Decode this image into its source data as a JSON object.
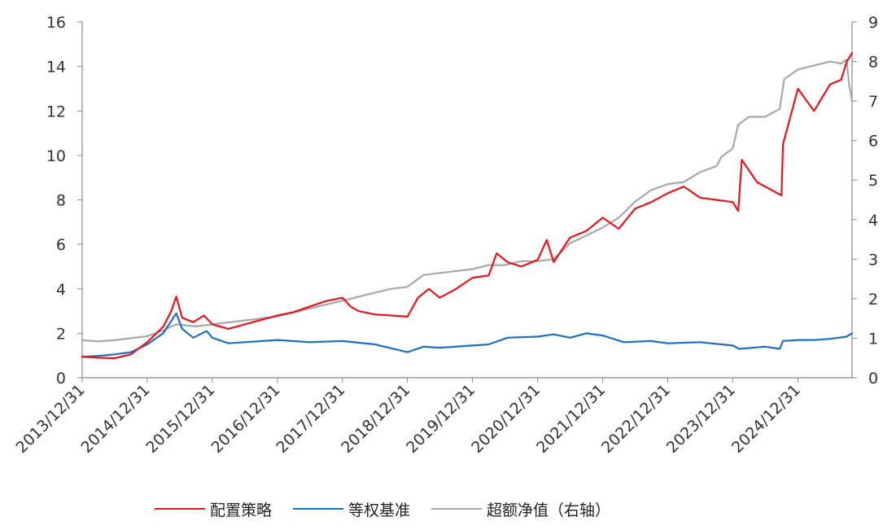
{
  "chart_data": {
    "type": "line",
    "title": "",
    "xlabel": "",
    "ylabel": "",
    "y2label": "",
    "x_ticks": [
      "2013/12/31",
      "2014/12/31",
      "2015/12/31",
      "2016/12/31",
      "2017/12/31",
      "2018/12/31",
      "2019/12/31",
      "2020/12/31",
      "2021/12/31",
      "2022/12/31",
      "2023/12/31",
      "2024/12/31"
    ],
    "ylim": [
      0,
      16
    ],
    "y_ticks": [
      0,
      2,
      4,
      6,
      8,
      10,
      12,
      14,
      16
    ],
    "y2lim": [
      0,
      9
    ],
    "y2_ticks": [
      0,
      1,
      2,
      3,
      4,
      5,
      6,
      7,
      8,
      9
    ],
    "grid": false,
    "legend_position": "bottom",
    "series": [
      {
        "name": "配置策略",
        "axis": "left",
        "color": "#e8141e",
        "x": [
          "2013-12-31",
          "2014-03-31",
          "2014-06-30",
          "2014-09-30",
          "2014-12-31",
          "2015-03-31",
          "2015-05-15",
          "2015-06-12",
          "2015-07-15",
          "2015-09-15",
          "2015-11-15",
          "2015-12-31",
          "2016-03-31",
          "2016-06-30",
          "2016-09-30",
          "2016-12-31",
          "2017-03-31",
          "2017-06-30",
          "2017-09-30",
          "2017-12-31",
          "2018-02-15",
          "2018-03-31",
          "2018-06-30",
          "2018-09-30",
          "2018-12-31",
          "2019-02-28",
          "2019-04-30",
          "2019-06-30",
          "2019-09-30",
          "2019-12-31",
          "2020-03-31",
          "2020-05-15",
          "2020-07-15",
          "2020-09-30",
          "2020-12-31",
          "2021-02-20",
          "2021-03-31",
          "2021-06-30",
          "2021-09-30",
          "2021-12-31",
          "2022-03-31",
          "2022-06-30",
          "2022-09-30",
          "2022-12-31",
          "2023-03-31",
          "2023-06-30",
          "2023-09-30",
          "2023-12-31",
          "2024-01-31",
          "2024-02-20",
          "2024-05-15",
          "2024-08-15",
          "2024-09-30",
          "2024-10-08",
          "2024-12-31",
          "2025-03-31",
          "2025-06-30",
          "2025-08-31",
          "2025-09-30",
          "2025-10-31"
        ],
        "values": [
          0.95,
          0.9,
          0.88,
          1.05,
          1.6,
          2.3,
          3.0,
          3.65,
          2.7,
          2.5,
          2.8,
          2.4,
          2.2,
          2.4,
          2.6,
          2.8,
          2.95,
          3.2,
          3.45,
          3.6,
          3.2,
          3.0,
          2.85,
          2.8,
          2.75,
          3.6,
          4.0,
          3.6,
          4.0,
          4.5,
          4.6,
          5.6,
          5.2,
          5.0,
          5.3,
          6.2,
          5.2,
          6.3,
          6.6,
          7.2,
          6.7,
          7.6,
          7.9,
          8.3,
          8.6,
          8.1,
          8.0,
          7.9,
          7.5,
          9.8,
          8.8,
          8.4,
          8.2,
          10.5,
          13.0,
          12.0,
          13.2,
          13.4,
          14.2,
          14.6
        ]
      },
      {
        "name": "等权基准",
        "axis": "left",
        "color": "#1f6fc0",
        "x": [
          "2013-12-31",
          "2014-03-31",
          "2014-06-30",
          "2014-09-30",
          "2014-12-31",
          "2015-03-31",
          "2015-06-12",
          "2015-07-15",
          "2015-09-15",
          "2015-11-30",
          "2015-12-31",
          "2016-03-31",
          "2016-06-30",
          "2016-12-31",
          "2017-06-30",
          "2017-12-31",
          "2018-06-30",
          "2018-12-31",
          "2019-03-31",
          "2019-06-30",
          "2019-12-31",
          "2020-03-31",
          "2020-07-15",
          "2020-12-31",
          "2021-03-31",
          "2021-06-30",
          "2021-09-30",
          "2021-12-31",
          "2022-04-30",
          "2022-09-30",
          "2022-12-31",
          "2023-06-30",
          "2023-12-31",
          "2024-02-05",
          "2024-06-30",
          "2024-09-20",
          "2024-10-08",
          "2024-12-31",
          "2025-03-31",
          "2025-06-30",
          "2025-09-30",
          "2025-10-31"
        ],
        "values": [
          0.95,
          0.98,
          1.05,
          1.15,
          1.5,
          2.0,
          2.9,
          2.2,
          1.8,
          2.1,
          1.8,
          1.55,
          1.6,
          1.7,
          1.6,
          1.65,
          1.5,
          1.15,
          1.4,
          1.35,
          1.45,
          1.5,
          1.8,
          1.85,
          1.95,
          1.8,
          2.0,
          1.9,
          1.6,
          1.65,
          1.55,
          1.6,
          1.45,
          1.3,
          1.4,
          1.3,
          1.65,
          1.7,
          1.7,
          1.75,
          1.85,
          2.0
        ]
      },
      {
        "name": "超额净值（右轴）",
        "axis": "right",
        "color": "#a8a8a8",
        "x": [
          "2013-12-31",
          "2014-03-31",
          "2014-06-30",
          "2014-09-30",
          "2014-12-31",
          "2015-03-31",
          "2015-06-12",
          "2015-09-30",
          "2015-12-31",
          "2016-06-30",
          "2016-12-31",
          "2017-06-30",
          "2017-12-31",
          "2018-03-31",
          "2018-06-30",
          "2018-09-30",
          "2018-12-31",
          "2019-03-31",
          "2019-06-30",
          "2019-12-31",
          "2020-03-31",
          "2020-06-30",
          "2020-09-30",
          "2020-12-31",
          "2021-03-31",
          "2021-06-30",
          "2021-09-30",
          "2021-12-31",
          "2022-03-31",
          "2022-06-30",
          "2022-09-30",
          "2022-12-31",
          "2023-03-31",
          "2023-06-30",
          "2023-09-30",
          "2023-10-31",
          "2023-12-31",
          "2024-01-31",
          "2024-03-31",
          "2024-06-30",
          "2024-09-20",
          "2024-10-15",
          "2024-12-31",
          "2025-03-31",
          "2025-06-30",
          "2025-08-31",
          "2025-09-30",
          "2025-10-15",
          "2025-10-31"
        ],
        "values": [
          0.95,
          0.92,
          0.95,
          1.0,
          1.05,
          1.2,
          1.35,
          1.3,
          1.35,
          1.45,
          1.55,
          1.75,
          1.95,
          2.05,
          2.15,
          2.25,
          2.3,
          2.6,
          2.65,
          2.75,
          2.85,
          2.85,
          2.95,
          2.95,
          3.0,
          3.4,
          3.6,
          3.8,
          4.05,
          4.45,
          4.75,
          4.9,
          4.95,
          5.2,
          5.35,
          5.6,
          5.8,
          6.4,
          6.6,
          6.6,
          6.8,
          7.55,
          7.8,
          7.9,
          8.0,
          7.95,
          8.05,
          7.4,
          7.0
        ]
      }
    ]
  }
}
